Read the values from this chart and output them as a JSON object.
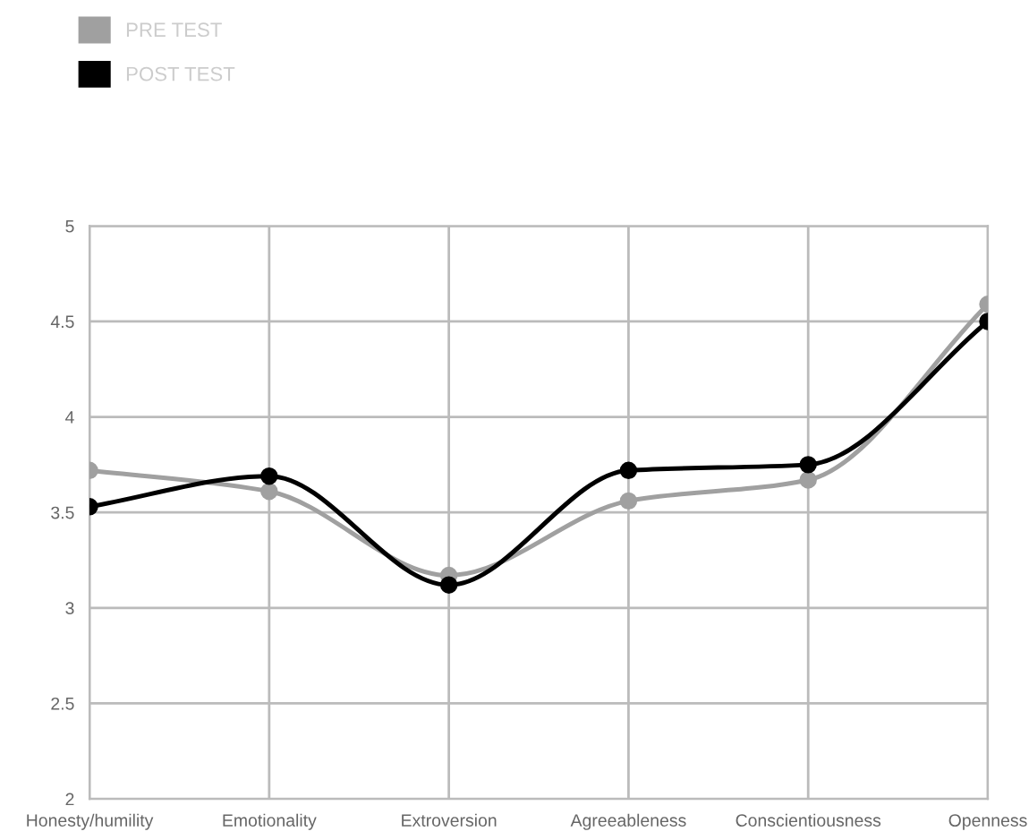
{
  "chart_data": {
    "type": "line",
    "categories": [
      "Honesty/humility",
      "Emotionality",
      "Extroversion",
      "Agreeableness",
      "Conscientiousness",
      "Openness"
    ],
    "series": [
      {
        "name": "PRE TEST",
        "color": "#a0a0a0",
        "values": [
          3.72,
          3.61,
          3.17,
          3.56,
          3.67,
          4.59
        ]
      },
      {
        "name": "POST TEST",
        "color": "#000000",
        "values": [
          3.53,
          3.69,
          3.12,
          3.72,
          3.75,
          4.5
        ]
      }
    ],
    "ylim": [
      2,
      5
    ],
    "yticks": [
      2,
      2.5,
      3,
      3.5,
      4,
      4.5,
      5
    ],
    "grid": true,
    "legend": "top left",
    "marker": "circle",
    "line_style": "solid"
  }
}
